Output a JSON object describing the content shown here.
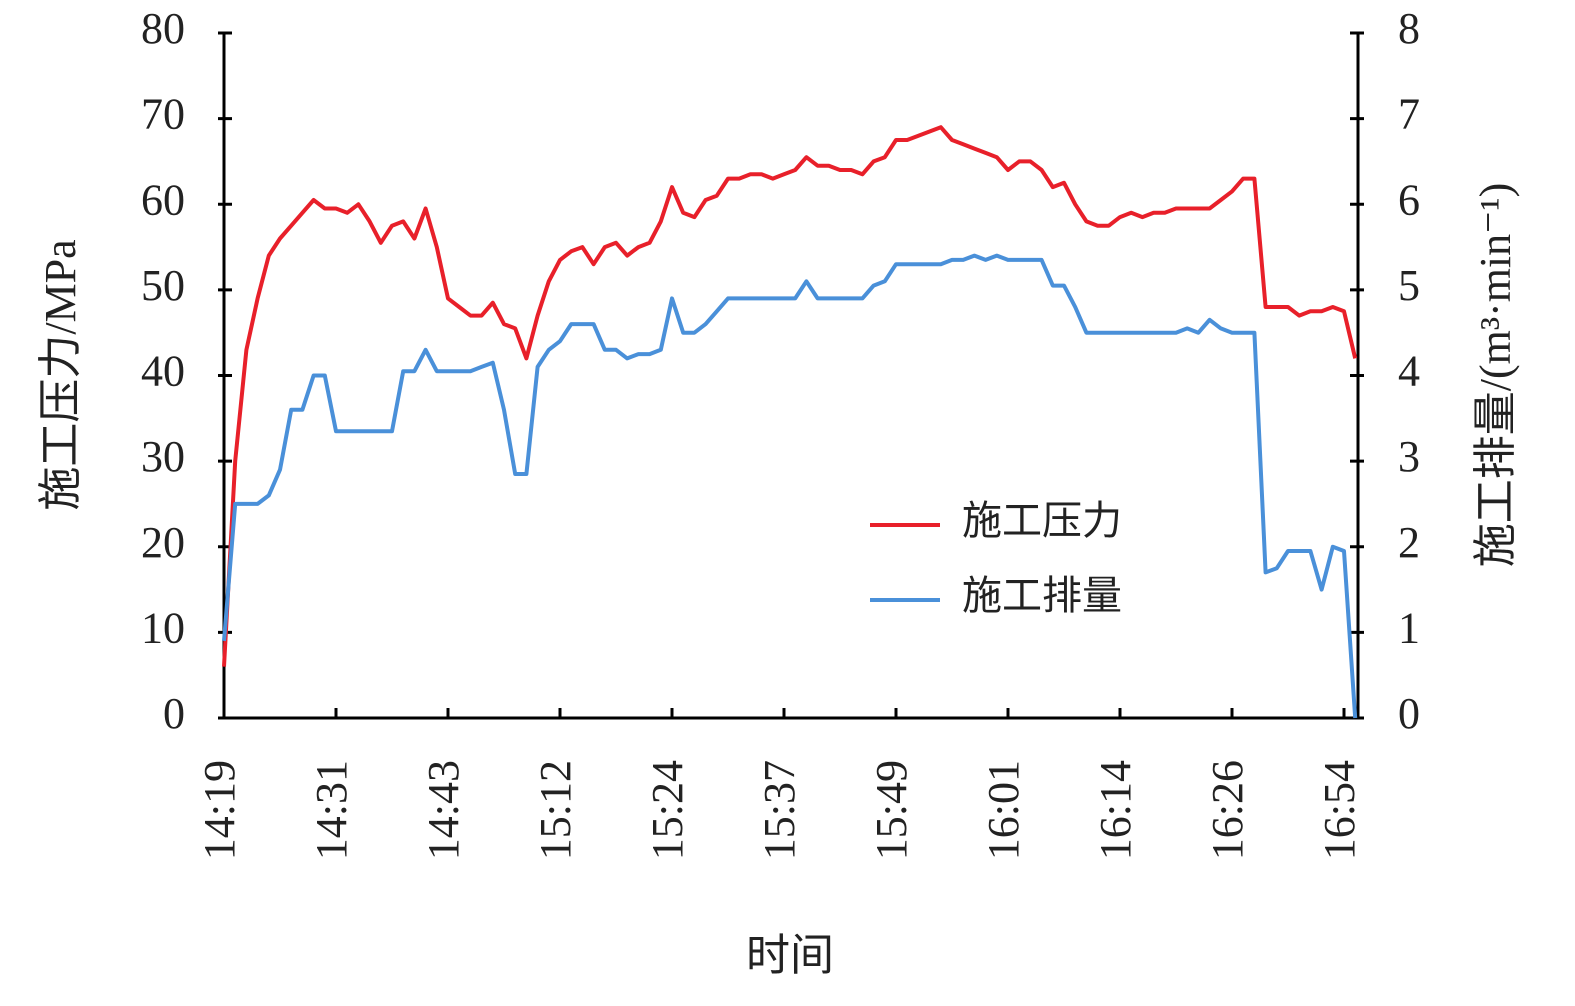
{
  "chart_data": {
    "type": "line",
    "x_label": "时间",
    "y_label": "施工压力/MPa",
    "y2_label": "施工排量/(m³·min⁻¹)",
    "categories": [
      "14:19",
      null,
      null,
      null,
      null,
      null,
      null,
      null,
      null,
      null,
      "14:31",
      null,
      null,
      null,
      null,
      null,
      null,
      null,
      null,
      null,
      "14:43",
      null,
      null,
      null,
      null,
      null,
      null,
      null,
      null,
      null,
      "15:12",
      null,
      null,
      null,
      null,
      null,
      null,
      null,
      null,
      null,
      "15:24",
      null,
      null,
      null,
      null,
      null,
      null,
      null,
      null,
      null,
      "15:37",
      null,
      null,
      null,
      null,
      null,
      null,
      null,
      null,
      null,
      "15:49",
      null,
      null,
      null,
      null,
      null,
      null,
      null,
      null,
      null,
      "16:01",
      null,
      null,
      null,
      null,
      null,
      null,
      null,
      null,
      null,
      "16:14",
      null,
      null,
      null,
      null,
      null,
      null,
      null,
      null,
      null,
      "16:26",
      null,
      null,
      null,
      null,
      null,
      null,
      null,
      null,
      null,
      "16:54",
      null
    ],
    "series": [
      {
        "name": "施工压力",
        "color": "#e8202a",
        "axis": "y",
        "values": [
          6,
          30,
          43,
          49,
          54,
          56,
          57.5,
          59,
          60.5,
          59.5,
          59.5,
          59,
          60,
          58,
          55.5,
          57.5,
          58,
          56,
          59.5,
          55,
          49,
          48,
          47,
          47,
          48.5,
          46,
          45.5,
          42,
          47,
          51,
          53.5,
          54.5,
          55,
          53,
          55,
          55.5,
          54,
          55,
          55.5,
          58,
          62,
          59,
          58.5,
          60.5,
          61,
          63,
          63,
          63.5,
          63.5,
          63,
          63.5,
          64,
          65.5,
          64.5,
          64.5,
          64,
          64,
          63.5,
          65,
          65.5,
          67.5,
          67.5,
          68,
          68.5,
          69,
          67.5,
          67,
          66.5,
          66,
          65.5,
          64,
          65,
          65,
          64,
          62,
          62.5,
          60,
          58,
          57.5,
          57.5,
          58.5,
          59,
          58.5,
          59,
          59,
          59.5,
          59.5,
          59.5,
          59.5,
          60.5,
          61.5,
          63,
          63,
          48,
          48,
          48,
          47,
          47.5,
          47.5,
          48,
          47.5,
          42
        ]
      },
      {
        "name": "施工排量",
        "color": "#4a90d9",
        "axis": "y2",
        "values": [
          0.9,
          2.5,
          2.5,
          2.5,
          2.6,
          2.9,
          3.6,
          3.6,
          4.0,
          4.0,
          3.35,
          3.35,
          3.35,
          3.35,
          3.35,
          3.35,
          4.05,
          4.05,
          4.3,
          4.05,
          4.05,
          4.05,
          4.05,
          4.1,
          4.15,
          3.6,
          2.85,
          2.85,
          4.1,
          4.3,
          4.4,
          4.6,
          4.6,
          4.6,
          4.3,
          4.3,
          4.2,
          4.25,
          4.25,
          4.3,
          4.9,
          4.5,
          4.5,
          4.6,
          4.75,
          4.9,
          4.9,
          4.9,
          4.9,
          4.9,
          4.9,
          4.9,
          5.1,
          4.9,
          4.9,
          4.9,
          4.9,
          4.9,
          5.05,
          5.1,
          5.3,
          5.3,
          5.3,
          5.3,
          5.3,
          5.35,
          5.35,
          5.4,
          5.35,
          5.4,
          5.35,
          5.35,
          5.35,
          5.35,
          5.05,
          5.05,
          4.8,
          4.5,
          4.5,
          4.5,
          4.5,
          4.5,
          4.5,
          4.5,
          4.5,
          4.5,
          4.55,
          4.5,
          4.65,
          4.55,
          4.5,
          4.5,
          4.5,
          1.7,
          1.75,
          1.95,
          1.95,
          1.95,
          1.5,
          2.0,
          1.95,
          0
        ]
      }
    ],
    "ylim": [
      0,
      80
    ],
    "yticks": [
      0,
      10,
      20,
      30,
      40,
      50,
      60,
      70,
      80
    ],
    "y2lim": [
      0,
      8
    ],
    "y2ticks": [
      0,
      1,
      2,
      3,
      4,
      5,
      6,
      7,
      8
    ],
    "legend": "center-right",
    "grid": false
  }
}
